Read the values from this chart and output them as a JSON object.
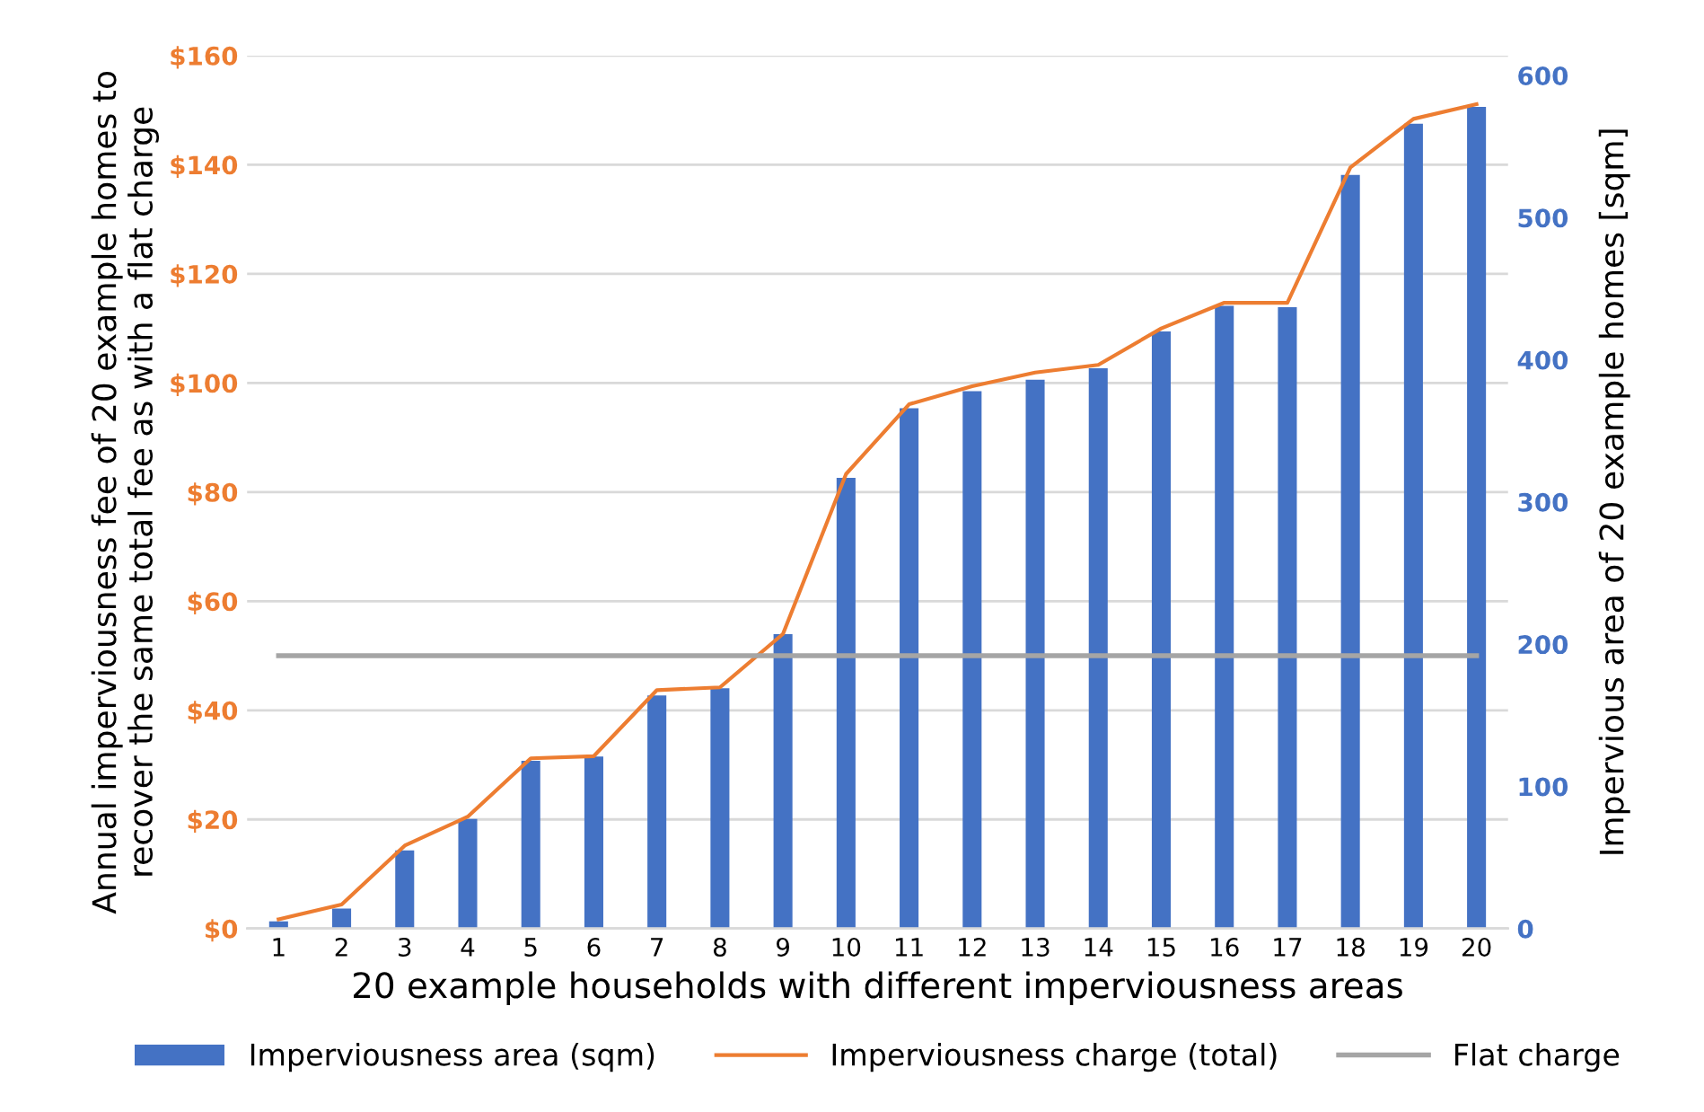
{
  "chart_data": {
    "type": "bar",
    "xlabel": "20 example households with different imperviousness areas",
    "ylabel": "Annual imperviousness fee of 20 example homes to\nrecover the same total fee as with a flat charge",
    "y2label": "Impervious area of 20 example homes [sqm]",
    "categories": [
      "1",
      "2",
      "3",
      "4",
      "5",
      "6",
      "7",
      "8",
      "9",
      "10",
      "11",
      "12",
      "13",
      "14",
      "15",
      "16",
      "17",
      "18",
      "19",
      "20"
    ],
    "series": [
      {
        "name": "Imperviousness area (sqm)",
        "axis": "y2",
        "color": "#4472c4",
        "values": [
          5,
          14,
          55,
          77,
          118,
          121,
          164,
          169,
          207,
          317,
          366,
          378,
          386,
          394,
          420,
          438,
          437,
          530,
          566,
          578
        ]
      },
      {
        "name": "Imperviousness charge (total)",
        "type": "line",
        "color": "#ed7d31",
        "values": [
          1.7,
          4.4,
          15.2,
          20.5,
          31.2,
          31.6,
          43.7,
          44.2,
          54,
          83.3,
          96.1,
          99.4,
          101.9,
          103.3,
          110,
          114.7,
          114.7,
          139.5,
          148.4,
          151.1
        ]
      },
      {
        "name": "Flat charge",
        "type": "line",
        "color": "#a5a5a5",
        "values": [
          50,
          50,
          50,
          50,
          50,
          50,
          50,
          50,
          50,
          50,
          50,
          50,
          50,
          50,
          50,
          50,
          50,
          50,
          50,
          50
        ]
      }
    ],
    "ylim": [
      0,
      160
    ],
    "yticks": [
      {
        "value": 0,
        "label": "$0"
      },
      {
        "value": 20,
        "label": "$20"
      },
      {
        "value": 40,
        "label": "$40"
      },
      {
        "value": 60,
        "label": "$60"
      },
      {
        "value": 80,
        "label": "$80"
      },
      {
        "value": 100,
        "label": "$100"
      },
      {
        "value": 120,
        "label": "$120"
      },
      {
        "value": 140,
        "label": "$140"
      },
      {
        "value": 160,
        "label": "$160"
      }
    ],
    "y2lim": [
      0,
      614
    ],
    "y2ticks": [
      0,
      100,
      200,
      300,
      400,
      500,
      600
    ],
    "grid": "y",
    "legend": "bottom",
    "marker": "none",
    "line_style": "solid"
  }
}
